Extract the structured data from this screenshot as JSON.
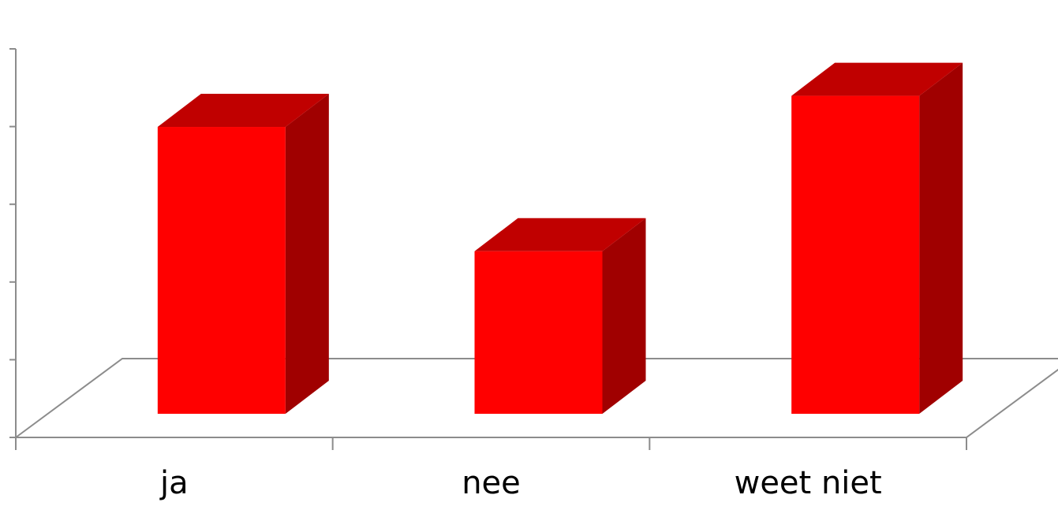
{
  "chart_data": {
    "type": "bar",
    "style": "3d-column",
    "categories": [
      "ja",
      "nee",
      "weet niet"
    ],
    "values": [
      4.3,
      2.7,
      4.7
    ],
    "ylim": [
      0,
      5
    ],
    "title": "",
    "xlabel": "",
    "ylabel": "",
    "grid": false,
    "legend": "none",
    "colors": {
      "front": "#ff0000",
      "top": "#c00000",
      "side": "#a00000",
      "axis": "#8c8c8c"
    }
  }
}
